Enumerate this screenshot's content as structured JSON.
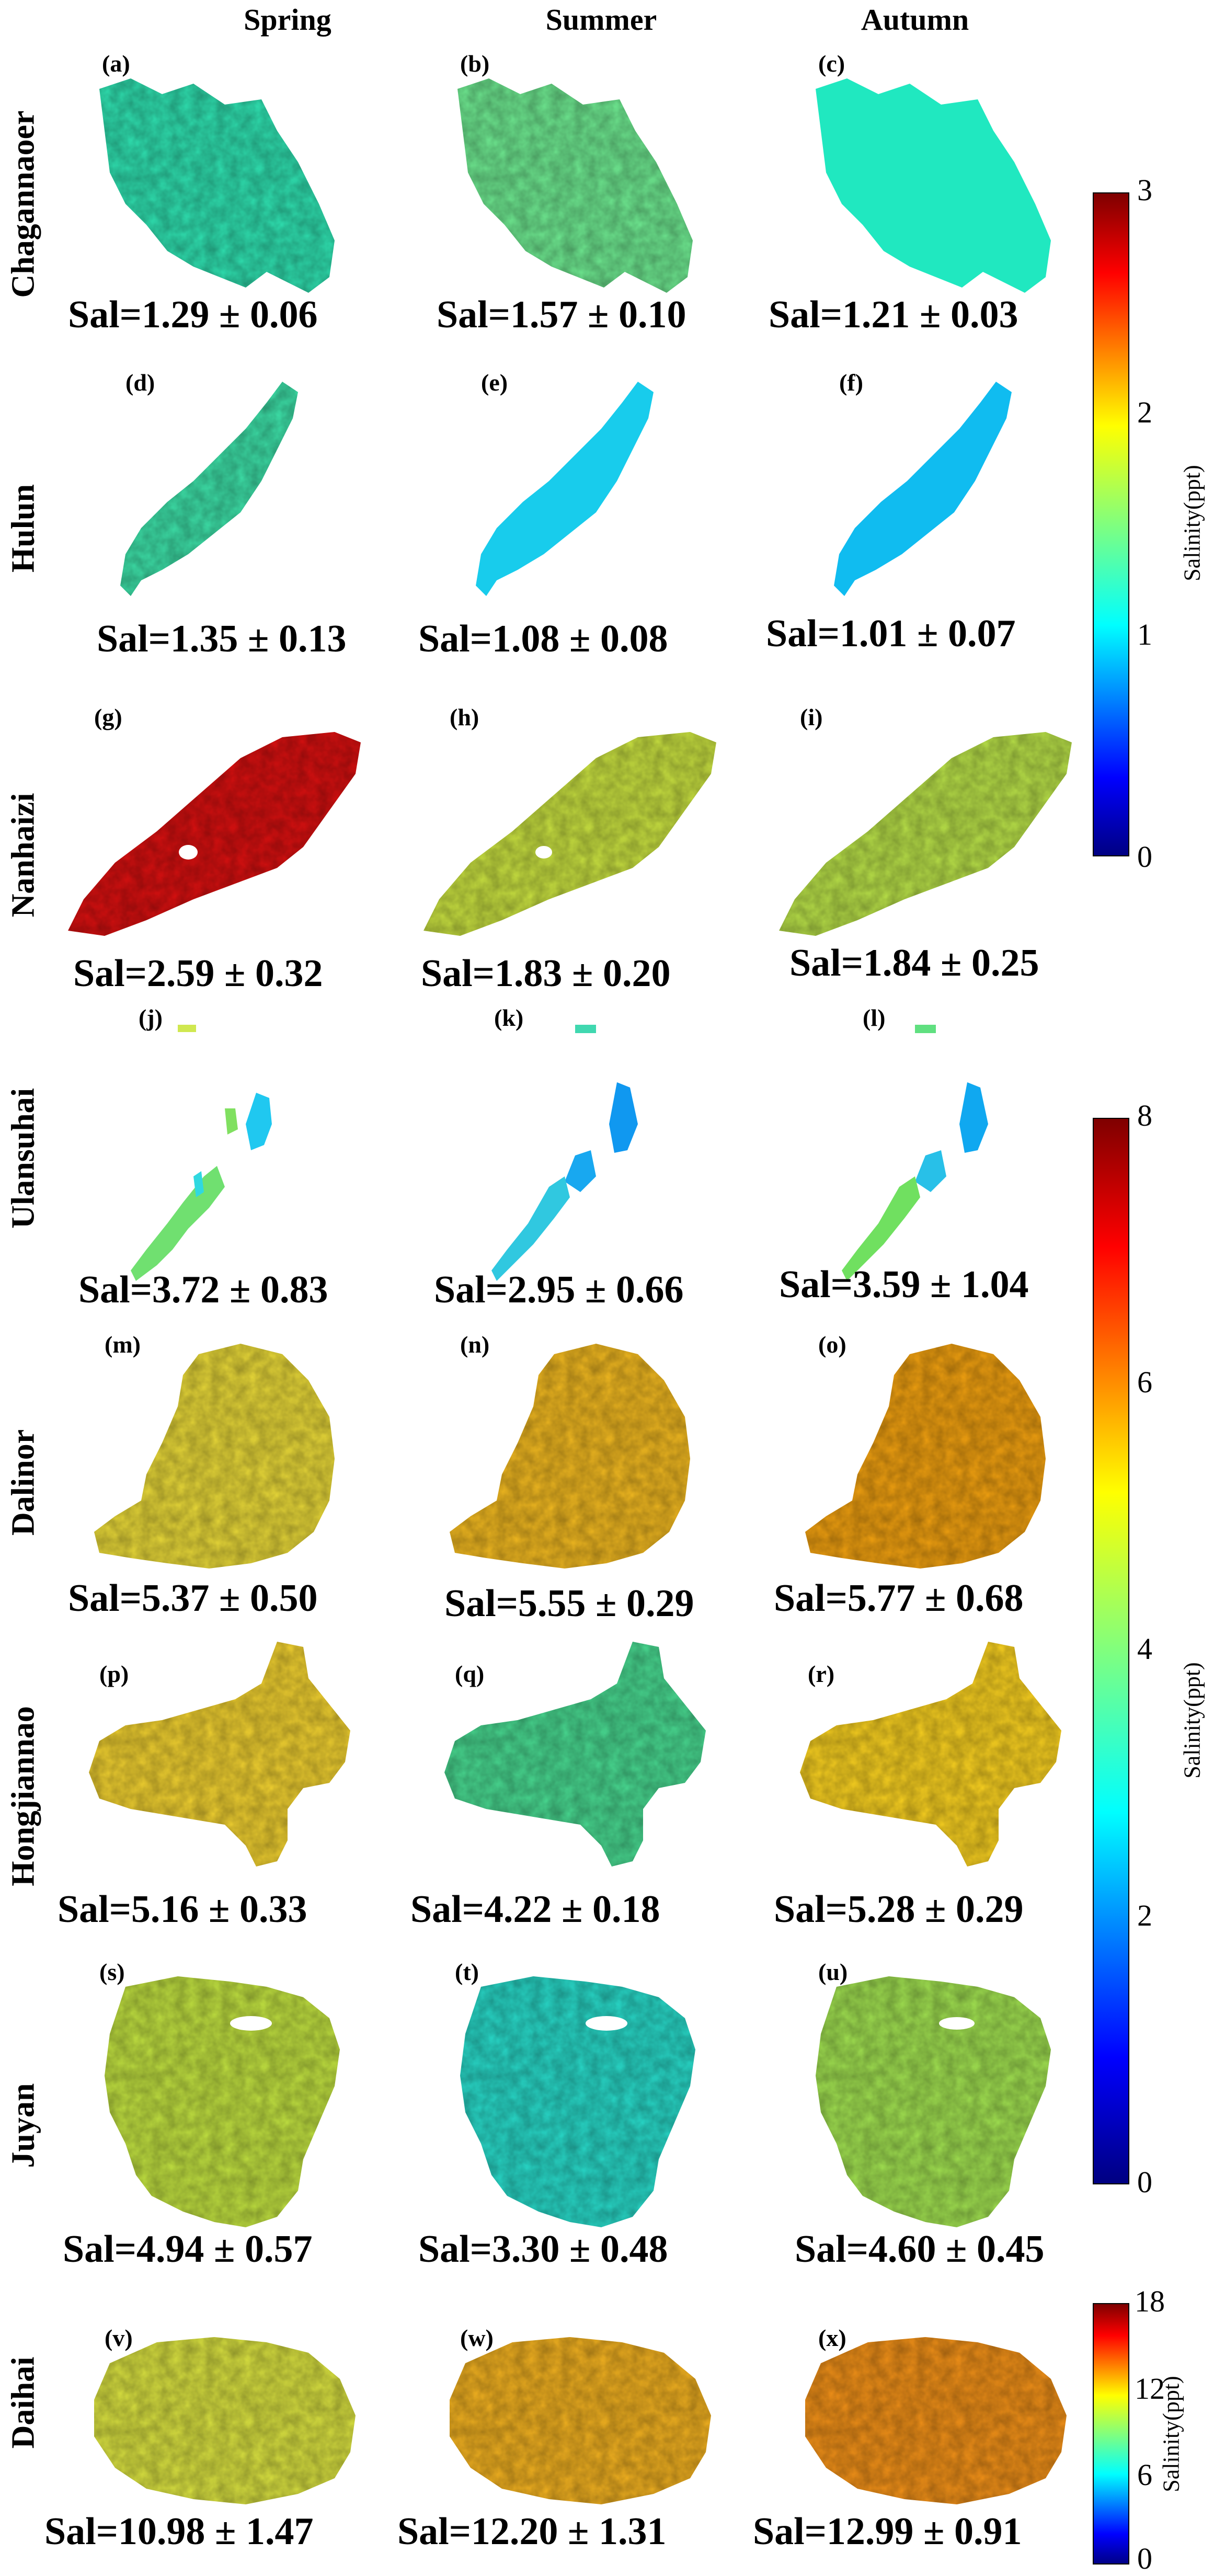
{
  "seasons": [
    "Spring",
    "Summer",
    "Autumn"
  ],
  "lakes": [
    {
      "name": "Chagannaoer",
      "panels": [
        {
          "label": "(a)",
          "sal": "Sal=1.29 ± 0.06"
        },
        {
          "label": "(b)",
          "sal": "Sal=1.57 ± 0.10"
        },
        {
          "label": "(c)",
          "sal": "Sal=1.21 ± 0.03"
        }
      ]
    },
    {
      "name": "Hulun",
      "panels": [
        {
          "label": "(d)",
          "sal": "Sal=1.35 ± 0.13"
        },
        {
          "label": "(e)",
          "sal": "Sal=1.08 ± 0.08"
        },
        {
          "label": "(f)",
          "sal": "Sal=1.01 ± 0.07"
        }
      ]
    },
    {
      "name": "Nanhaizi",
      "panels": [
        {
          "label": "(g)",
          "sal": "Sal=2.59 ± 0.32"
        },
        {
          "label": "(h)",
          "sal": "Sal=1.83 ± 0.20"
        },
        {
          "label": "(i)",
          "sal": "Sal=1.84 ± 0.25"
        }
      ]
    },
    {
      "name": "Ulansuhai",
      "panels": [
        {
          "label": "(j)",
          "sal": "Sal=3.72 ± 0.83"
        },
        {
          "label": "(k)",
          "sal": "Sal=2.95 ± 0.66"
        },
        {
          "label": "(l)",
          "sal": "Sal=3.59 ± 1.04"
        }
      ]
    },
    {
      "name": "Dalinor",
      "panels": [
        {
          "label": "(m)",
          "sal": "Sal=5.37 ± 0.50"
        },
        {
          "label": "(n)",
          "sal": "Sal=5.55 ± 0.29"
        },
        {
          "label": "(o)",
          "sal": "Sal=5.77 ± 0.68"
        }
      ]
    },
    {
      "name": "Hongjiannao",
      "panels": [
        {
          "label": "(p)",
          "sal": "Sal=5.16 ± 0.33"
        },
        {
          "label": "(q)",
          "sal": "Sal=4.22 ± 0.18"
        },
        {
          "label": "(r)",
          "sal": "Sal=5.28 ± 0.29"
        }
      ]
    },
    {
      "name": "Juyan",
      "panels": [
        {
          "label": "(s)",
          "sal": "Sal=4.94 ± 0.57"
        },
        {
          "label": "(t)",
          "sal": "Sal=3.30 ± 0.48"
        },
        {
          "label": "(u)",
          "sal": "Sal=4.60 ± 0.45"
        }
      ]
    },
    {
      "name": "Daihai",
      "panels": [
        {
          "label": "(v)",
          "sal": "Sal=10.98 ± 1.47"
        },
        {
          "label": "(w)",
          "sal": "Sal=12.20 ± 1.31"
        },
        {
          "label": "(x)",
          "sal": "Sal=12.99 ± 0.91"
        }
      ]
    }
  ],
  "colorbars": [
    {
      "title": "Salinity(ppt)",
      "ticks": [
        "3",
        "2",
        "1",
        "0"
      ]
    },
    {
      "title": "Salinity(ppt)",
      "ticks": [
        "8",
        "6",
        "4",
        "2",
        "0"
      ]
    },
    {
      "title": "Salinity(ppt)",
      "ticks": [
        "18",
        "12",
        "6",
        "0"
      ]
    }
  ],
  "colors": {
    "jet": [
      "#00007f",
      "#0000ff",
      "#0080ff",
      "#00ffff",
      "#80ff80",
      "#ffff00",
      "#ff8000",
      "#ff0000",
      "#7f0000"
    ]
  }
}
